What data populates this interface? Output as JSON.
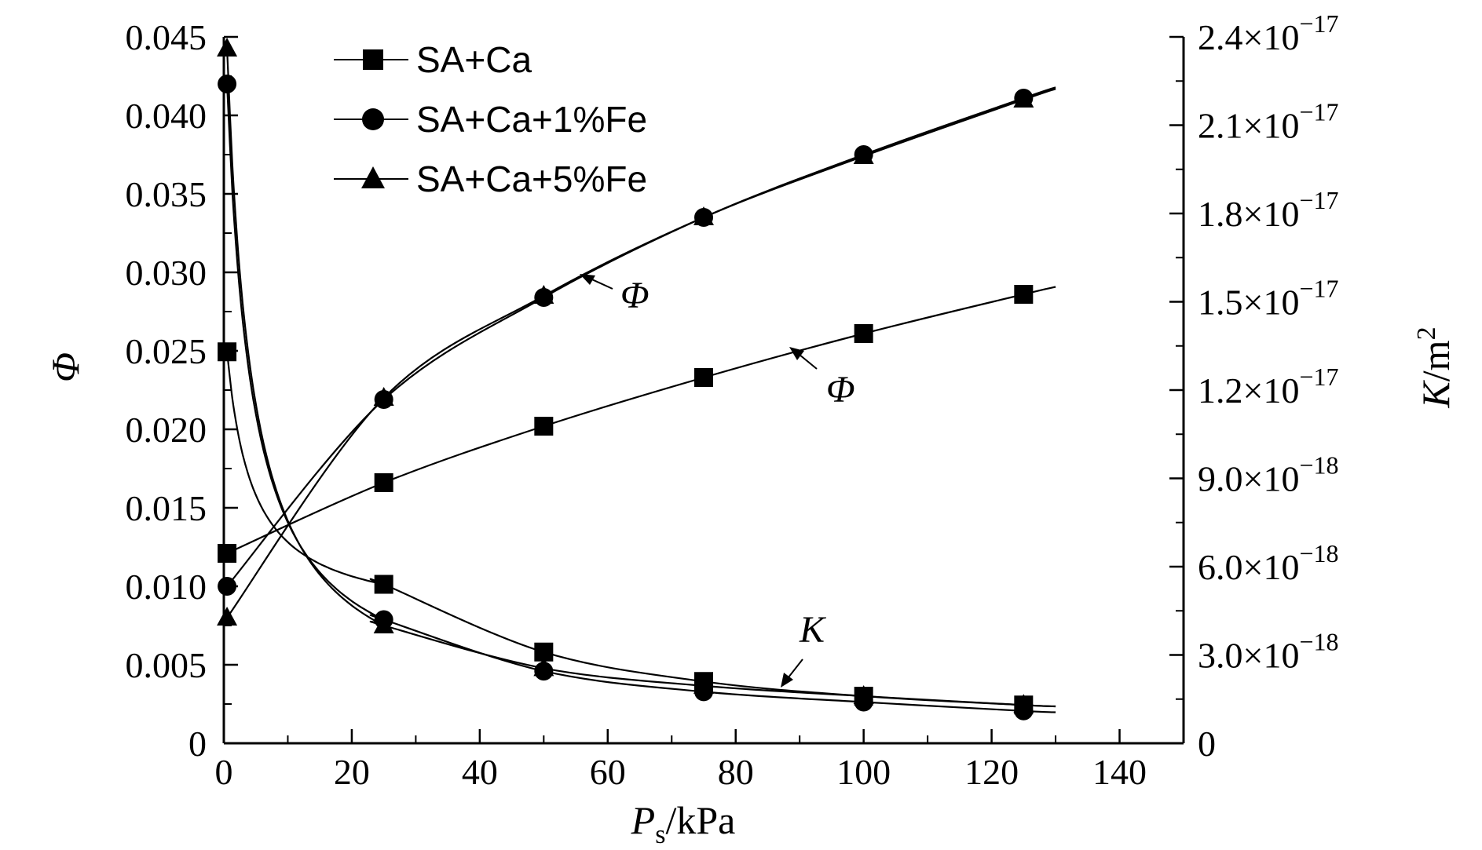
{
  "chart_data": {
    "type": "line",
    "title": "",
    "xlabel": {
      "main": "P",
      "sub": "s",
      "unit": "/kPa"
    },
    "ylabel_left": "Φ",
    "ylabel_right": {
      "main": "K",
      "unit": "/m",
      "sup": "2"
    },
    "xlim": [
      0,
      150
    ],
    "ylim_left": [
      0,
      0.045
    ],
    "ylim_right": [
      0,
      2.4e-17
    ],
    "x_ticks": [
      "0",
      "20",
      "40",
      "60",
      "80",
      "100",
      "120",
      "140"
    ],
    "x_tick_values": [
      0,
      20,
      40,
      60,
      80,
      100,
      120,
      140
    ],
    "y_left_ticks": [
      "0",
      "0.005",
      "0.010",
      "0.015",
      "0.020",
      "0.025",
      "0.030",
      "0.035",
      "0.040",
      "0.045"
    ],
    "y_left_tick_values": [
      0,
      0.005,
      0.01,
      0.015,
      0.02,
      0.025,
      0.03,
      0.035,
      0.04,
      0.045
    ],
    "y_right_ticks": [
      {
        "plain": "0",
        "mant": "",
        "exp": ""
      },
      {
        "plain": "",
        "mant": "3.0×10",
        "exp": "−18"
      },
      {
        "plain": "",
        "mant": "6.0×10",
        "exp": "−18"
      },
      {
        "plain": "",
        "mant": "9.0×10",
        "exp": "−18"
      },
      {
        "plain": "",
        "mant": "1.2×10",
        "exp": "−17"
      },
      {
        "plain": "",
        "mant": "1.5×10",
        "exp": "−17"
      },
      {
        "plain": "",
        "mant": "1.8×10",
        "exp": "−17"
      },
      {
        "plain": "",
        "mant": "2.1×10",
        "exp": "−17"
      },
      {
        "plain": "",
        "mant": "2.4×10",
        "exp": "−17"
      }
    ],
    "y_right_tick_values": [
      0,
      3e-18,
      6e-18,
      9e-18,
      1.2e-17,
      1.5e-17,
      1.8e-17,
      2.1e-17,
      2.4e-17
    ],
    "legend_position": "top-left",
    "series": [
      {
        "name": "SA+Ca",
        "marker": "square",
        "quantity": "Φ",
        "x": [
          0.5,
          25,
          50,
          75,
          100,
          125
        ],
        "y": [
          0.0121,
          0.0166,
          0.0202,
          0.0233,
          0.0261,
          0.0286
        ]
      },
      {
        "name": "SA+Ca+1%Fe",
        "marker": "circle",
        "quantity": "Φ",
        "x": [
          0.5,
          25,
          50,
          75,
          100,
          125
        ],
        "y": [
          0.01,
          0.0219,
          0.0284,
          0.0335,
          0.0375,
          0.0411
        ]
      },
      {
        "name": "SA+Ca+5%Fe",
        "marker": "triangle",
        "quantity": "Φ",
        "x": [
          0.5,
          25,
          50,
          75,
          100,
          125
        ],
        "y": [
          0.008,
          0.022,
          0.0285,
          0.0335,
          0.0374,
          0.041
        ]
      },
      {
        "name": "SA+Ca",
        "marker": "square",
        "quantity": "K",
        "x": [
          0.5,
          25,
          50,
          75,
          100,
          125
        ],
        "y": [
          1.33e-17,
          5.4e-18,
          3.1e-18,
          2.1e-18,
          1.6e-18,
          1.3e-18
        ]
      },
      {
        "name": "SA+Ca+1%Fe",
        "marker": "circle",
        "quantity": "K",
        "x": [
          0.5,
          25,
          50,
          75,
          100,
          125
        ],
        "y": [
          2.24e-17,
          4.2e-18,
          2.45e-18,
          1.75e-18,
          1.4e-18,
          1.1e-18
        ]
      },
      {
        "name": "SA+Ca+5%Fe",
        "marker": "triangle",
        "quantity": "K",
        "x": [
          0.5,
          25,
          50,
          75,
          100,
          125
        ],
        "y": [
          2.36e-17,
          4e-18,
          2.55e-18,
          1.95e-18,
          1.6e-18,
          1.3e-18
        ]
      }
    ],
    "legend": [
      "SA+Ca",
      "SA+Ca+1%Fe",
      "SA+Ca+5%Fe"
    ],
    "annotations": [
      {
        "text": "Φ",
        "target": "Φ curves (Fe)"
      },
      {
        "text": "Φ",
        "target": "Φ curve (SA+Ca)"
      },
      {
        "text": "K",
        "target": "K curves"
      }
    ]
  }
}
